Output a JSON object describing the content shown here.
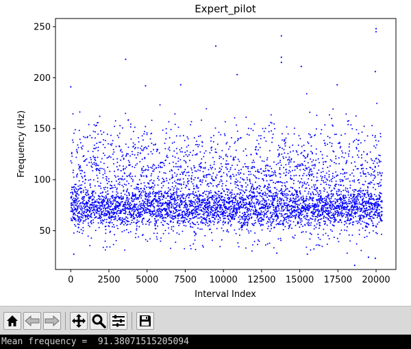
{
  "window": {
    "toolbar_buttons": [
      {
        "name": "home-button",
        "icon": "home-icon"
      },
      {
        "name": "back-button",
        "icon": "back-arrow-icon"
      },
      {
        "name": "forward-button",
        "icon": "forward-arrow-icon"
      },
      {
        "name": "pan-button",
        "icon": "move-icon"
      },
      {
        "name": "zoom-button",
        "icon": "magnifier-icon"
      },
      {
        "name": "configure-subplots-button",
        "icon": "sliders-icon"
      },
      {
        "name": "save-button",
        "icon": "floppy-disk-icon"
      }
    ]
  },
  "terminal": {
    "output": "Mean frequency =  91.38071515205094"
  },
  "chart_data": {
    "type": "scatter",
    "title": "Expert_pilot",
    "xlabel": "Interval Index",
    "ylabel": "Frequency (Hz)",
    "xlim": [
      -1000,
      21300
    ],
    "ylim": [
      12,
      258
    ],
    "xticks": [
      0,
      2500,
      5000,
      7500,
      10000,
      12500,
      15000,
      17500,
      20000
    ],
    "xtick_labels": [
      "0",
      "2500",
      "5000",
      "7500",
      "10000",
      "12500",
      "15000",
      "17500",
      "20000"
    ],
    "yticks": [
      50,
      100,
      150,
      200,
      250
    ],
    "ytick_labels": [
      "50",
      "100",
      "150",
      "200",
      "250"
    ],
    "marker_color": "#0000ff",
    "grid": false,
    "legend": "none",
    "point_count": 20400,
    "mean_y": 91.38,
    "notable_points": [
      {
        "x": 20000,
        "y": 248
      },
      {
        "x": 20000,
        "y": 245
      },
      {
        "x": 13800,
        "y": 241
      },
      {
        "x": 9500,
        "y": 231
      },
      {
        "x": 13800,
        "y": 220
      },
      {
        "x": 3600,
        "y": 218
      },
      {
        "x": 13800,
        "y": 215
      },
      {
        "x": 15100,
        "y": 211
      },
      {
        "x": 19950,
        "y": 206
      },
      {
        "x": 10900,
        "y": 203
      },
      {
        "x": 0,
        "y": 191
      },
      {
        "x": 7200,
        "y": 193
      },
      {
        "x": 4900,
        "y": 192
      },
      {
        "x": 17450,
        "y": 193
      },
      {
        "x": 18600,
        "y": 16
      },
      {
        "x": 19950,
        "y": 23
      },
      {
        "x": 19500,
        "y": 24
      },
      {
        "x": 13500,
        "y": 28
      },
      {
        "x": 15500,
        "y": 27
      },
      {
        "x": 200,
        "y": 27
      }
    ]
  }
}
